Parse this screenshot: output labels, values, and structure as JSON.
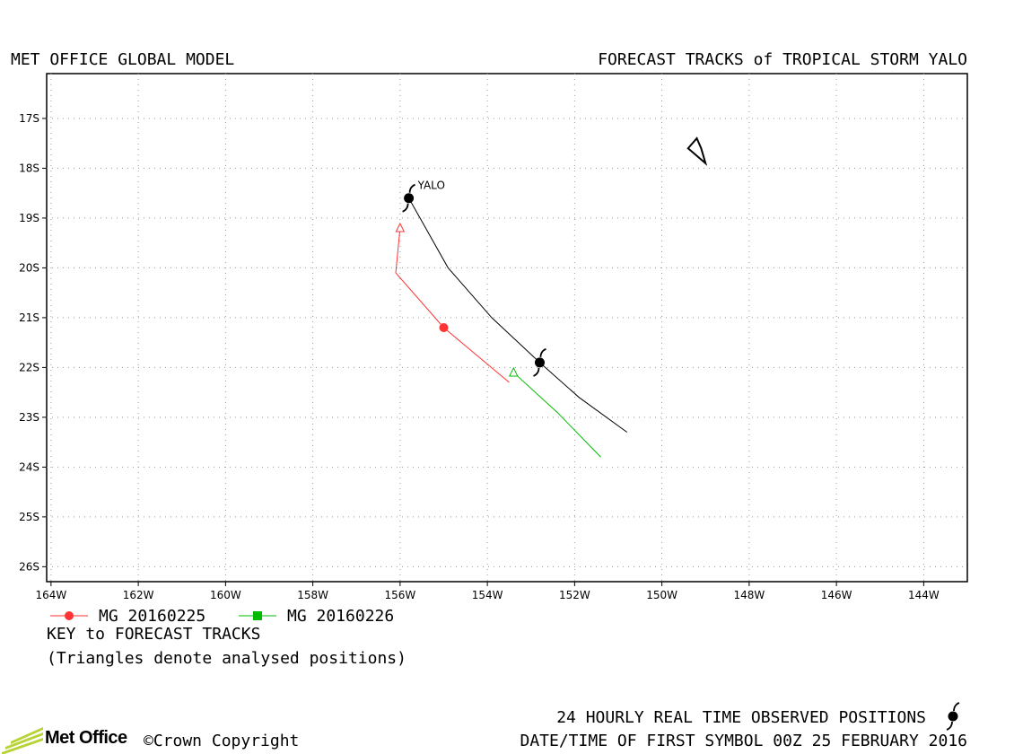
{
  "header": {
    "left_title": "MET OFFICE GLOBAL MODEL",
    "right_title": "FORECAST TRACKS of TROPICAL STORM YALO"
  },
  "chart_data": {
    "type": "map-track",
    "x_ticks": [
      "164W",
      "162W",
      "160W",
      "158W",
      "156W",
      "154W",
      "152W",
      "150W",
      "148W",
      "146W",
      "144W"
    ],
    "y_ticks": [
      "17S",
      "18S",
      "19S",
      "20S",
      "21S",
      "22S",
      "23S",
      "24S",
      "25S",
      "26S"
    ],
    "xlim": [
      -164.1,
      -143.0
    ],
    "ylim": [
      -26.3,
      -16.1
    ],
    "grid": true,
    "storm_label": "YALO",
    "observed_track": {
      "name": "observed",
      "color": "#000000",
      "points": [
        [
          -155.8,
          -18.6
        ],
        [
          -154.9,
          -20.0
        ],
        [
          -153.9,
          -21.0
        ],
        [
          -152.8,
          -21.9
        ],
        [
          -151.9,
          -22.6
        ],
        [
          -150.8,
          -23.3
        ]
      ],
      "symbols": [
        [
          -155.8,
          -18.6
        ],
        [
          -152.8,
          -21.9
        ]
      ]
    },
    "series": [
      {
        "name": "MG 20160225",
        "color": "#ff3333",
        "marker": "circle",
        "points": [
          [
            -156.0,
            -19.2
          ],
          [
            -156.1,
            -20.1
          ],
          [
            -155.0,
            -21.2
          ],
          [
            -153.5,
            -22.3
          ]
        ],
        "analysed": [
          [
            -156.0,
            -19.2
          ]
        ],
        "markers": [
          [
            -155.0,
            -21.2
          ]
        ]
      },
      {
        "name": "MG 20160226",
        "color": "#00bb00",
        "marker": "square",
        "points": [
          [
            -153.4,
            -22.1
          ],
          [
            -152.4,
            -22.9
          ],
          [
            -151.4,
            -23.8
          ]
        ],
        "analysed": [
          [
            -153.4,
            -22.1
          ]
        ],
        "markers": []
      }
    ],
    "land": [
      [
        [
          -149.4,
          -17.6
        ],
        [
          -149.0,
          -17.9
        ],
        [
          -149.1,
          -17.6
        ],
        [
          -149.2,
          -17.4
        ]
      ]
    ]
  },
  "legend": {
    "key_title": "KEY to FORECAST TRACKS",
    "note": "(Triangles denote analysed positions)"
  },
  "footer": {
    "observed_label": "24 HOURLY REAL TIME OBSERVED POSITIONS",
    "datetime_label": "DATE/TIME OF FIRST SYMBOL 00Z 25 FEBRUARY 2016",
    "brand": "Met Office",
    "copyright": "©Crown Copyright"
  },
  "colors": {
    "brand_green": "#b6d334",
    "frame": "#000000",
    "grid": "#999999"
  }
}
